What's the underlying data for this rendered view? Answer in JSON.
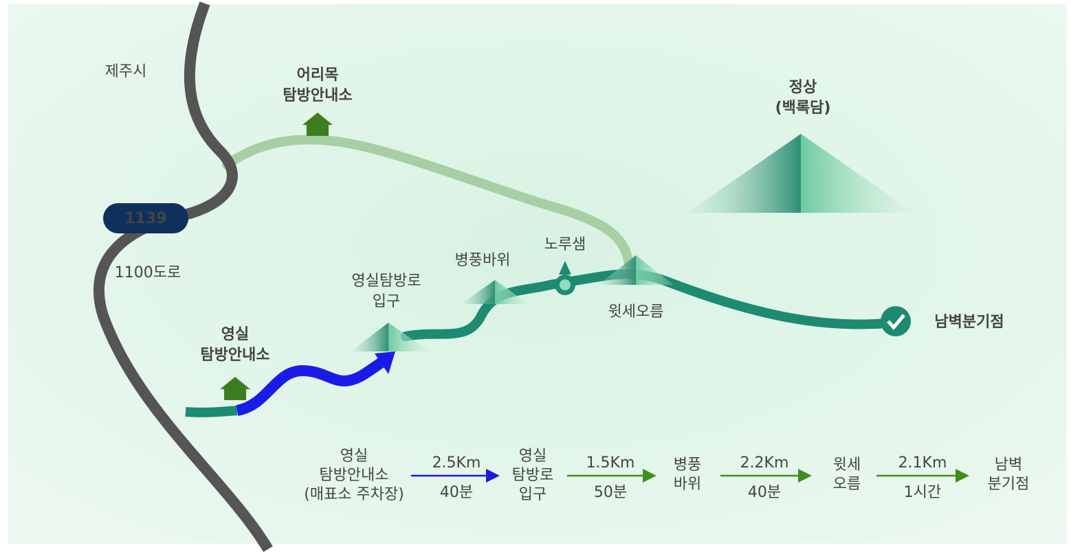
{
  "map": {
    "city_label": "제주시",
    "road_number": "1139",
    "road_name": "1100도로",
    "places": [
      {
        "lines": [
          "어리목",
          "탐방안내소"
        ]
      },
      {
        "lines": [
          "정상",
          "(백록담)"
        ]
      },
      {
        "lines": [
          "영실",
          "탐방안내소"
        ]
      },
      {
        "lines": [
          "영실탐방로",
          "입구"
        ]
      },
      {
        "lines": [
          "병풍바위"
        ]
      },
      {
        "lines": [
          "노루샘"
        ]
      },
      {
        "lines": [
          "윗세오름"
        ]
      },
      {
        "lines": [
          "남벽분기점"
        ]
      }
    ]
  },
  "route": {
    "stops": [
      {
        "lines": [
          "영실",
          "탐방안내소",
          "(매표소 주차장)"
        ]
      },
      {
        "lines": [
          "영실",
          "탐방로",
          "입구"
        ]
      },
      {
        "lines": [
          "병풍",
          "바위"
        ]
      },
      {
        "lines": [
          "윗세",
          "오름"
        ]
      },
      {
        "lines": [
          "남벽",
          "분기점"
        ]
      }
    ],
    "legs": [
      {
        "distance": "2.5Km",
        "time": "40분"
      },
      {
        "distance": "1.5Km",
        "time": "50분"
      },
      {
        "distance": "2.2Km",
        "time": "40분"
      },
      {
        "distance": "2.1Km",
        "time": "1시간"
      }
    ]
  }
}
